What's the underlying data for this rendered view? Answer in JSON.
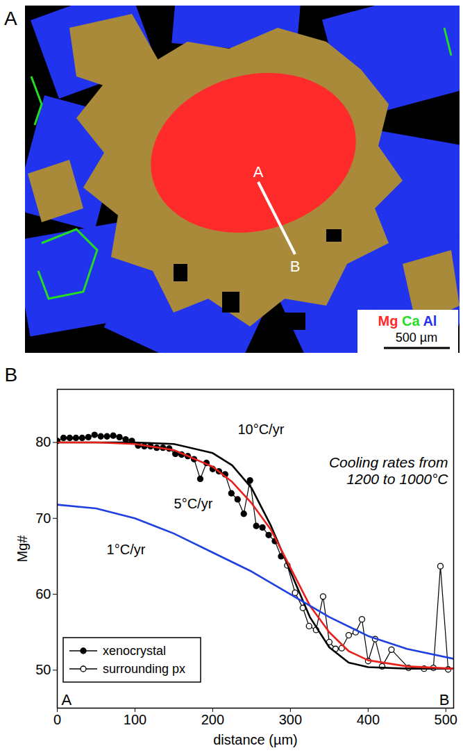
{
  "panel_a": {
    "letter": "A",
    "transect": {
      "start": "A",
      "end": "B"
    },
    "element_legend": [
      {
        "label": "Mg",
        "color": "#ff2a2a"
      },
      {
        "label": "Ca",
        "color": "#22dd22"
      },
      {
        "label": "Al",
        "color": "#2233ee"
      }
    ],
    "scale_bar": "500 µm"
  },
  "chart_data": {
    "type": "line",
    "panel": "B",
    "x_label": "distance (µm)",
    "y_label": "Mg#",
    "xlim": [
      0,
      510
    ],
    "ylim": [
      45,
      87
    ],
    "xticks": [
      0,
      100,
      200,
      300,
      400,
      500
    ],
    "yticks": [
      50,
      60,
      70,
      80
    ],
    "annotations": [
      "Cooling rates from\n1200 to 1000°C"
    ],
    "end_labels": [
      "A",
      "B"
    ],
    "legend": "bottom-left",
    "series": [
      {
        "name": "xenocrystal",
        "color": "#000000",
        "type": "line",
        "marker": "circle",
        "line_style": "solid",
        "x": [
          0,
          8,
          16,
          24,
          32,
          40,
          48,
          56,
          64,
          72,
          80,
          88,
          96,
          104,
          112,
          120,
          128,
          136,
          144,
          152,
          160,
          168,
          176,
          184,
          192,
          200,
          208,
          216,
          224,
          232,
          240,
          248,
          256,
          264,
          272,
          280,
          288
        ],
        "values": [
          80.2,
          80.6,
          80.6,
          80.6,
          80.6,
          80.7,
          81.0,
          80.8,
          80.8,
          80.9,
          80.7,
          80.4,
          80.2,
          79.6,
          79.5,
          79.5,
          79.3,
          79.3,
          79.2,
          78.5,
          78.4,
          78.2,
          77.8,
          75.2,
          77.3,
          76.5,
          76.2,
          75.8,
          73.3,
          72.5,
          70.6,
          75.0,
          69.0,
          68.8,
          67.8,
          67.0,
          65.0
        ]
      },
      {
        "name": "surrounding px",
        "color": "#000000",
        "type": "line",
        "marker": "open_circle",
        "line_style": "solid",
        "x": [
          296,
          306,
          316,
          324,
          333,
          342,
          350,
          358,
          366,
          375,
          384,
          392,
          400,
          409,
          418,
          430,
          452,
          472,
          484,
          493,
          503
        ],
        "values": [
          63.8,
          60.2,
          58.2,
          55.8,
          55.3,
          59.7,
          53.7,
          52.8,
          52.9,
          54.6,
          55.0,
          56.7,
          51.2,
          54.1,
          50.5,
          52.7,
          50.3,
          50.2,
          50.3,
          63.7,
          50.1
        ]
      },
      {
        "name": "10°C/yr",
        "color": "#000000",
        "type": "line",
        "marker": "none",
        "line_style": "solid",
        "x": [
          0,
          50,
          100,
          150,
          200,
          225,
          250,
          275,
          300,
          325,
          350,
          375,
          400,
          450,
          510
        ],
        "values": [
          80,
          80,
          80,
          79.8,
          78.6,
          77,
          74,
          69,
          63,
          57,
          53,
          51,
          50.4,
          50.2,
          50.2
        ]
      },
      {
        "name": "5°C/yr",
        "color": "#e8201a",
        "type": "line",
        "marker": "none",
        "line_style": "solid",
        "x": [
          0,
          50,
          100,
          150,
          200,
          225,
          250,
          275,
          300,
          325,
          350,
          375,
          400,
          450,
          510
        ],
        "values": [
          80,
          80,
          79.8,
          79,
          76.8,
          74.8,
          72,
          68.5,
          63.5,
          58.5,
          55,
          52.5,
          51.3,
          50.5,
          50.2
        ]
      },
      {
        "name": "1°C/yr",
        "color": "#1f3fe0",
        "type": "line",
        "marker": "none",
        "line_style": "solid",
        "x": [
          0,
          50,
          100,
          150,
          200,
          250,
          300,
          350,
          400,
          450,
          510
        ],
        "values": [
          71.8,
          71.3,
          70,
          68,
          65.5,
          63,
          60,
          57,
          54.5,
          52.8,
          51.5
        ]
      }
    ]
  }
}
